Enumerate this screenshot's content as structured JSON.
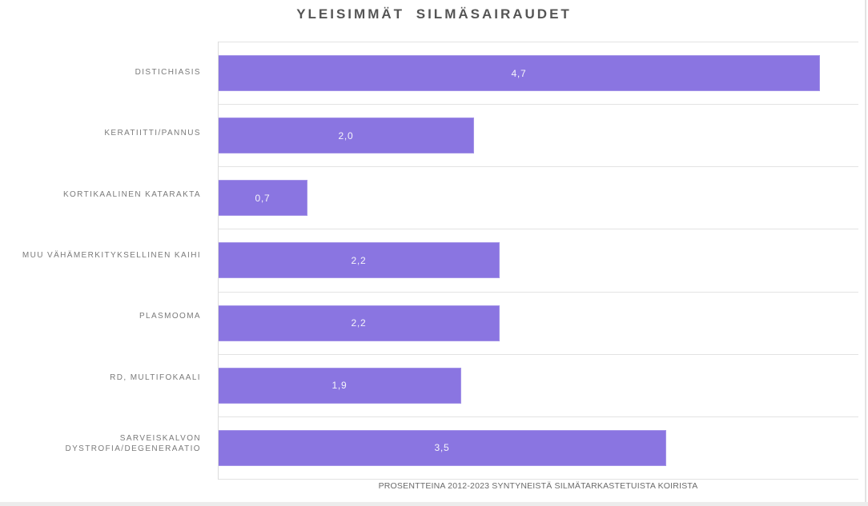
{
  "title": "YLEISIMMÄT SILMÄSAIRAUDET",
  "caption": "PROSENTTEINA 2012-2023 SYNTYNEISTÄ SILMÄTARKASTETUISTA KOIRISTA",
  "chart_data": {
    "type": "bar",
    "orientation": "horizontal",
    "title": "YLEISIMMÄT SILMÄSAIRAUDET",
    "categories": [
      "DISTICHIASIS",
      "KERATIITTI/PANNUS",
      "KORTIKAALINEN KATARAKTA",
      "MUU VÄHÄMERKITYKSELLINEN KAIHI",
      "PLASMOOMA",
      "RD, MULTIFOKAALI",
      "SARVEISKALVON DYSTROFIA/DEGENERAATIO"
    ],
    "values": [
      4.7,
      2.0,
      0.7,
      2.2,
      2.2,
      1.9,
      3.5
    ],
    "display_values": [
      "4,7",
      "2,0",
      "0,7",
      "2,2",
      "2,2",
      "1,9",
      "3,5"
    ],
    "xlabel": "",
    "ylabel": "",
    "xlim": [
      0,
      5
    ],
    "grid": "row-separator-lines",
    "legend": "none",
    "bar_color": "#8A75E1",
    "value_label_color": "#f6f5fb",
    "gridline_color": "#e3e3e3",
    "subtitle": "PROSENTTEINA 2012-2023 SYNTYNEISTÄ SILMÄTARKASTETUISTA KOIRISTA"
  }
}
